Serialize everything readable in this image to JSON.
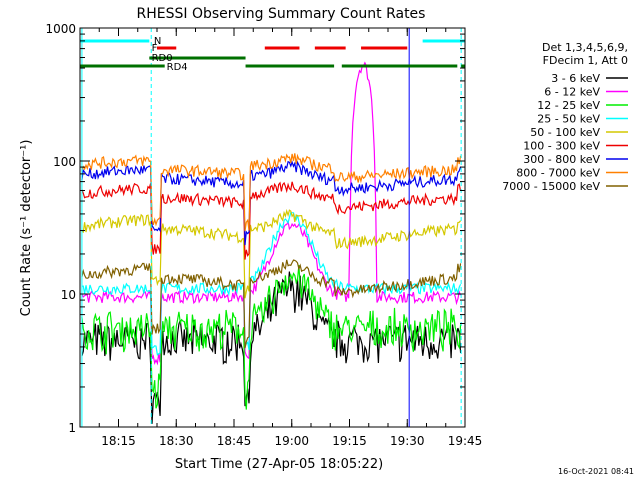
{
  "chart_data": {
    "type": "line",
    "title": "RHESSI Observing Summary Count Rates",
    "xlabel": "Start Time (27-Apr-05 18:05:22)",
    "ylabel": "Count Rate (s⁻¹ detector⁻¹)",
    "ylog": true,
    "ylim": [
      1,
      1000
    ],
    "xlim_minutes": [
      5,
      105
    ],
    "y_ticks": [
      "1",
      "10",
      "100",
      "1000"
    ],
    "x_ticks": [
      {
        "t": 15,
        "label": "18:15"
      },
      {
        "t": 30,
        "label": "18:30"
      },
      {
        "t": 45,
        "label": "18:45"
      },
      {
        "t": 60,
        "label": "19:00"
      },
      {
        "t": 75,
        "label": "19:15"
      },
      {
        "t": 90,
        "label": "19:30"
      },
      {
        "t": 105,
        "label": "19:45"
      }
    ],
    "legend_header": [
      "Det 1,3,4,5,6,9,",
      "FDecim 1, Att 0"
    ],
    "series": [
      {
        "name": "3 - 6 keV",
        "color": "#000000",
        "shape": "low",
        "base": 4.5
      },
      {
        "name": "6 - 12 keV",
        "color": "#ff00ff",
        "shape": "flat",
        "base": 9.5,
        "flare_peak": 530
      },
      {
        "name": "12 - 25 keV",
        "color": "#00ee00",
        "shape": "low",
        "base": 5.5
      },
      {
        "name": "25 - 50 keV",
        "color": "#00ffff",
        "shape": "flat",
        "base": 11
      },
      {
        "name": "50 - 100 keV",
        "color": "#d4c800",
        "shape": "orbit",
        "base": 28,
        "amp": 1.3
      },
      {
        "name": "100 - 300 keV",
        "color": "#ee0000",
        "shape": "orbit",
        "base": 52,
        "amp": 1.2
      },
      {
        "name": "300 - 800 keV",
        "color": "#0000ee",
        "shape": "orbit",
        "base": 72,
        "amp": 1.2
      },
      {
        "name": "800 - 7000 keV",
        "color": "#ff8000",
        "shape": "orbit",
        "base": 88,
        "amp": 1.15
      },
      {
        "name": "7000 - 15000 keV",
        "color": "#806000",
        "shape": "orbit",
        "base": 12,
        "amp": 1.3
      }
    ],
    "flags": [
      {
        "label": "N",
        "color": "#00ffff",
        "segments": [
          [
            5,
            23
          ],
          [
            94,
            105
          ]
        ]
      },
      {
        "label": "F",
        "color": "#ee0000",
        "segments": [
          [
            25,
            30
          ],
          [
            53,
            62
          ],
          [
            66,
            74
          ],
          [
            78,
            90
          ]
        ]
      },
      {
        "label": "RD0",
        "color": "#007000",
        "segments": [
          [
            23,
            48
          ]
        ]
      },
      {
        "label": "RD4",
        "color": "#007000",
        "segments": [
          [
            5,
            27
          ],
          [
            48,
            71
          ],
          [
            73,
            103
          ],
          [
            104,
            105
          ]
        ]
      }
    ],
    "vlines_solid": [
      {
        "t": 5.5,
        "color": "#00ffff"
      },
      {
        "t": 90.5,
        "color": "#0000ff"
      }
    ],
    "vlines_dashed": [
      23.5,
      104
    ]
  },
  "footer": {
    "timestamp": "16-Oct-2021 08:41"
  }
}
